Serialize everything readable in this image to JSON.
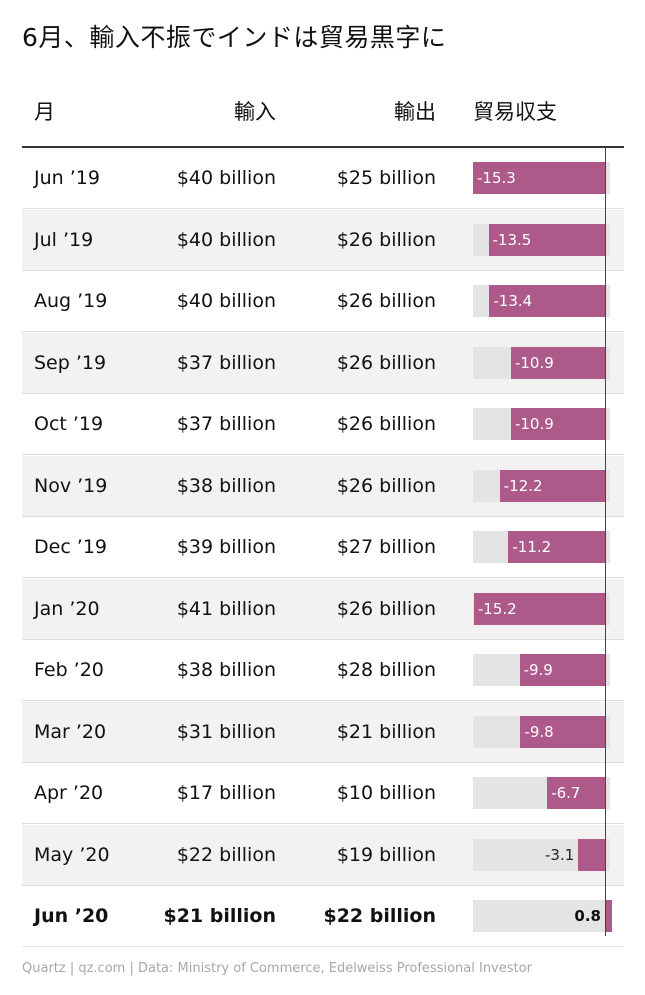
{
  "title": "6月、輸入不振でインドは貿易黒字に",
  "columns": [
    "月",
    "輸入",
    "輸出",
    "貿易収支"
  ],
  "chart_data": {
    "type": "table",
    "title": "6月、輸入不振でインドは貿易黒字に",
    "bar_column": "貿易収支",
    "bar_range": [
      -15.3,
      0.8
    ],
    "rows": [
      {
        "month": "Jun ’19",
        "imports": "$40 billion",
        "exports": "$25 billion",
        "balance": -15.3,
        "balance_label": "-15.3"
      },
      {
        "month": "Jul ’19",
        "imports": "$40 billion",
        "exports": "$26 billion",
        "balance": -13.5,
        "balance_label": "-13.5"
      },
      {
        "month": "Aug ’19",
        "imports": "$40 billion",
        "exports": "$26 billion",
        "balance": -13.4,
        "balance_label": "-13.4"
      },
      {
        "month": "Sep ’19",
        "imports": "$37 billion",
        "exports": "$26 billion",
        "balance": -10.9,
        "balance_label": "-10.9"
      },
      {
        "month": "Oct ’19",
        "imports": "$37 billion",
        "exports": "$26 billion",
        "balance": -10.9,
        "balance_label": "-10.9"
      },
      {
        "month": "Nov ’19",
        "imports": "$38 billion",
        "exports": "$26 billion",
        "balance": -12.2,
        "balance_label": "-12.2"
      },
      {
        "month": "Dec ’19",
        "imports": "$39 billion",
        "exports": "$27 billion",
        "balance": -11.2,
        "balance_label": "-11.2"
      },
      {
        "month": "Jan ’20",
        "imports": "$41 billion",
        "exports": "$26 billion",
        "balance": -15.2,
        "balance_label": "-15.2"
      },
      {
        "month": "Feb ’20",
        "imports": "$38 billion",
        "exports": "$28 billion",
        "balance": -9.9,
        "balance_label": "-9.9"
      },
      {
        "month": "Mar ’20",
        "imports": "$31 billion",
        "exports": "$21 billion",
        "balance": -9.8,
        "balance_label": "-9.8"
      },
      {
        "month": "Apr ’20",
        "imports": "$17 billion",
        "exports": "$10 billion",
        "balance": -6.7,
        "balance_label": "-6.7"
      },
      {
        "month": "May ’20",
        "imports": "$22 billion",
        "exports": "$19 billion",
        "balance": -3.1,
        "balance_label": "-3.1"
      },
      {
        "month": "Jun ’20",
        "imports": "$21 billion",
        "exports": "$22 billion",
        "balance": 0.8,
        "balance_label": "0.8",
        "highlight": true
      }
    ]
  },
  "colors": {
    "bar": "#ad5a8b",
    "bar_background": "#e4e4e4",
    "stripe": "#f2f2f2"
  },
  "footer": "Quartz | qz.com | Data: Ministry of Commerce, Edelweiss Professional Investor"
}
